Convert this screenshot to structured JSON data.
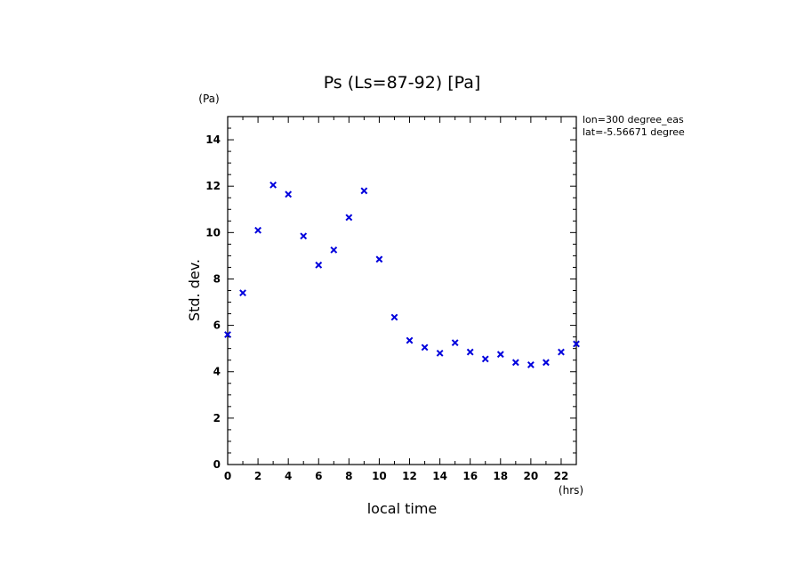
{
  "chart_data": {
    "type": "scatter",
    "title": "Ps (Ls=87-92) [Pa]",
    "xlabel": "local time",
    "xunit": "(hrs)",
    "ylabel": "Std. dev.",
    "yunit": "(Pa)",
    "annotations": [
      "lon=300 degree_eas",
      "lat=-5.56671 degree"
    ],
    "xlim": [
      0,
      23
    ],
    "ylim": [
      0,
      15
    ],
    "x_ticks": [
      0,
      2,
      4,
      6,
      8,
      10,
      12,
      14,
      16,
      18,
      20,
      22
    ],
    "y_ticks": [
      0,
      2,
      4,
      6,
      8,
      10,
      12,
      14
    ],
    "marker_color": "#0000dd",
    "marker": "x",
    "series": [
      {
        "x": [
          0,
          1,
          2,
          3,
          4,
          5,
          6,
          7,
          8,
          9,
          10,
          11,
          12,
          13,
          14,
          15,
          16,
          17,
          18,
          19,
          20,
          21,
          22,
          23
        ],
        "y": [
          5.6,
          7.4,
          10.1,
          12.05,
          11.65,
          9.85,
          8.6,
          9.25,
          10.65,
          11.8,
          8.85,
          6.35,
          5.35,
          5.05,
          4.8,
          5.25,
          4.85,
          4.55,
          4.75,
          4.4,
          4.3,
          4.4,
          4.85,
          5.2
        ]
      }
    ]
  }
}
